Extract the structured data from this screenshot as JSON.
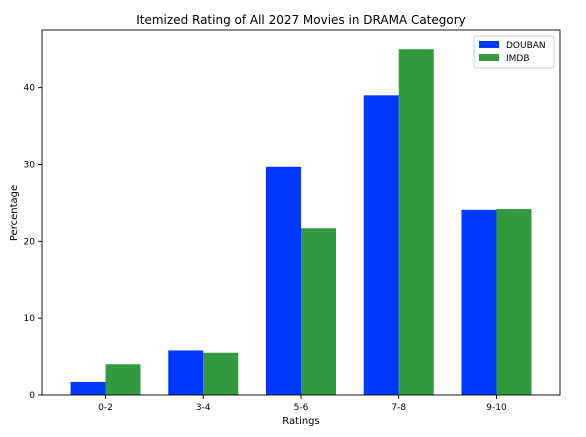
{
  "chart_data": {
    "type": "bar",
    "title": "Itemized Rating of All 2027 Movies in DRAMA Category",
    "xlabel": "Ratings",
    "ylabel": "Percentage",
    "categories": [
      "0-2",
      "3-4",
      "5-6",
      "7-8",
      "9-10"
    ],
    "series": [
      {
        "name": "DOUBAN",
        "color": "#0038ff",
        "values": [
          1.7,
          5.8,
          29.7,
          39.0,
          24.1
        ]
      },
      {
        "name": "IMDB",
        "color": "#339a3f",
        "values": [
          4.0,
          5.5,
          21.7,
          45.0,
          24.2
        ]
      }
    ],
    "ylim": [
      0,
      47.5
    ],
    "yticks": [
      0,
      10,
      20,
      30,
      40
    ],
    "grid": false,
    "legend": "top-right"
  }
}
